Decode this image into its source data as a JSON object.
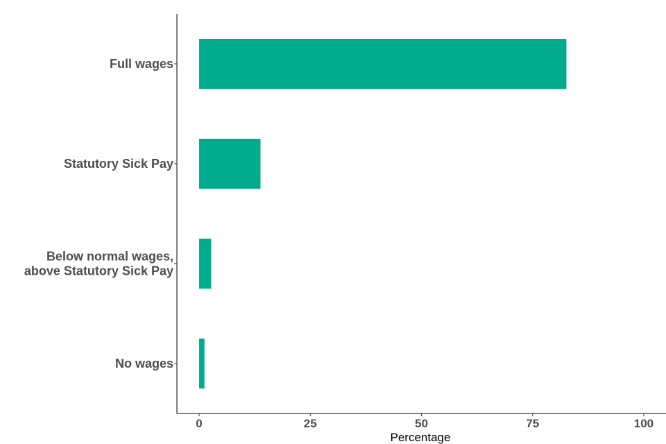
{
  "chart_data": {
    "type": "bar",
    "orientation": "horizontal",
    "categories": [
      [
        "Full wages"
      ],
      [
        "Statutory Sick Pay"
      ],
      [
        "Below normal wages,",
        "above Statutory Sick Pay"
      ],
      [
        "No wages"
      ]
    ],
    "values": [
      82.6,
      13.8,
      2.7,
      1.2
    ],
    "xlabel": "Percentage",
    "ylabel": "",
    "xlim": [
      -5,
      105
    ],
    "xticks": [
      0,
      25,
      50,
      75,
      100
    ],
    "grid": false,
    "legend": "none",
    "bar_color": "#00ab8e"
  }
}
